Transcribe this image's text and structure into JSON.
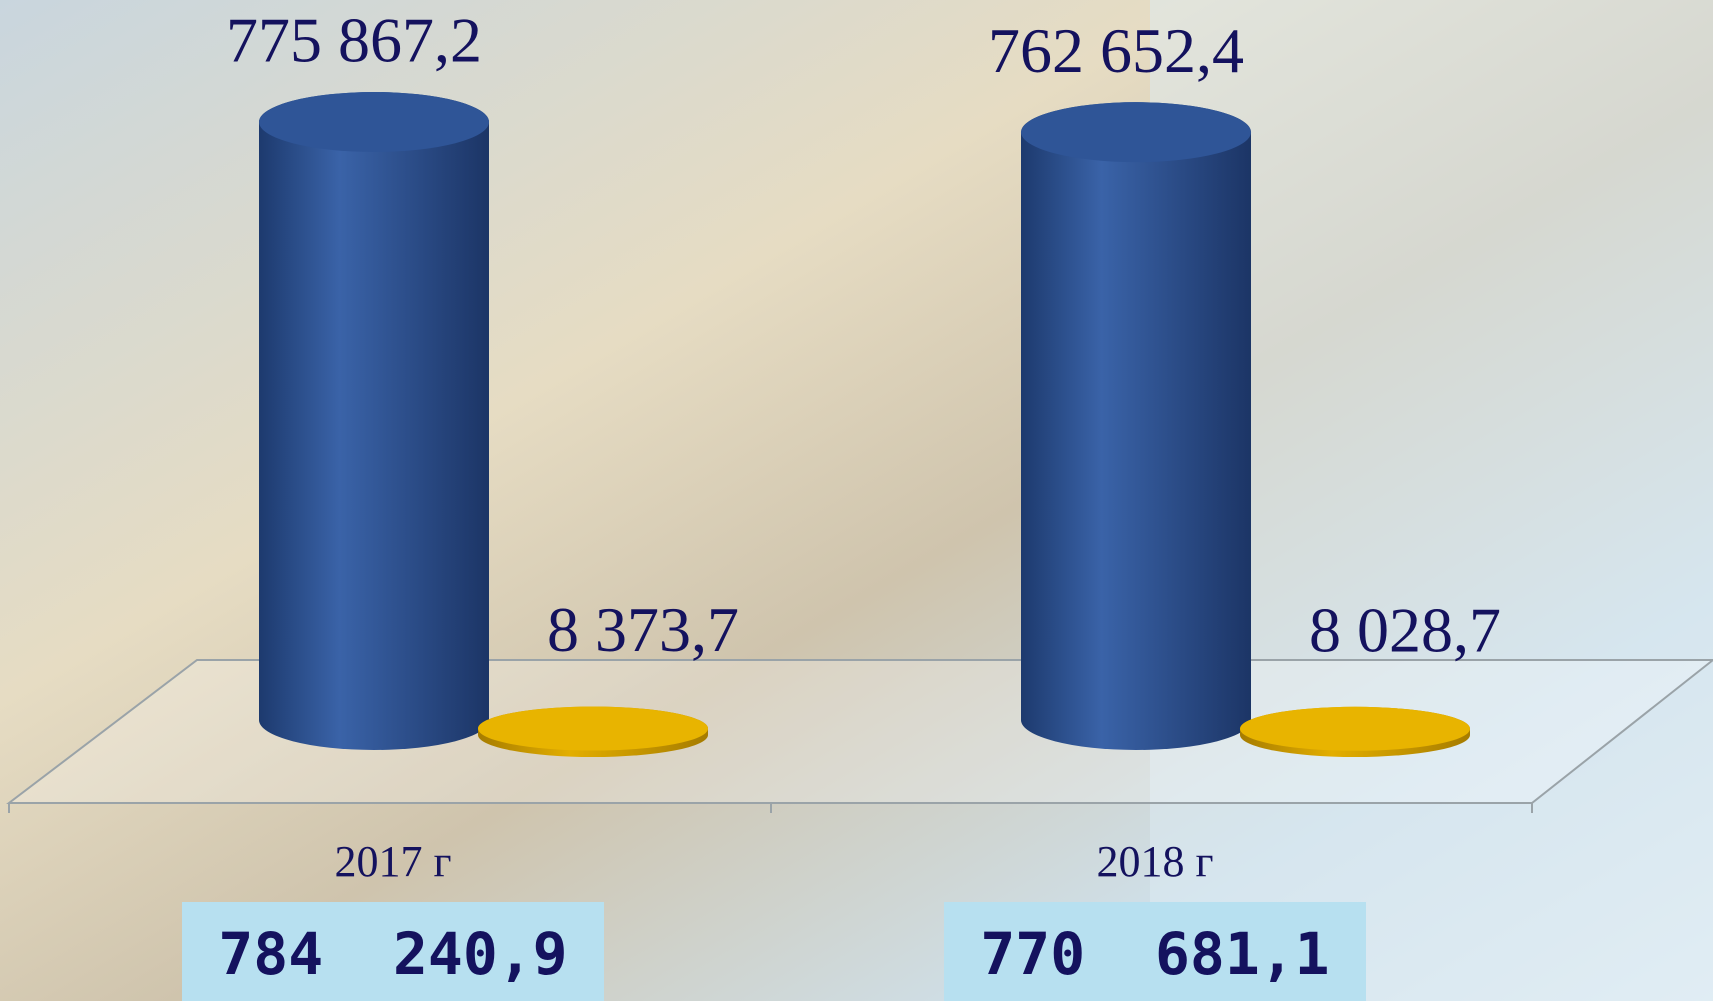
{
  "chart_data": {
    "type": "cylinder",
    "categories": [
      "2017 г",
      "2018 г"
    ],
    "series": [
      {
        "color": "#2f5597",
        "values": [
          775867.2,
          762652.4
        ],
        "value_labels": [
          "775 867,2",
          "762 652,4"
        ]
      },
      {
        "color": "#d9a300",
        "values": [
          8373.7,
          8028.7
        ],
        "value_labels": [
          "8 373,7",
          "8 028,7"
        ]
      }
    ],
    "totals": [
      784240.9,
      770681.1
    ],
    "total_labels": [
      "784  240,9",
      "770  681,1"
    ]
  }
}
